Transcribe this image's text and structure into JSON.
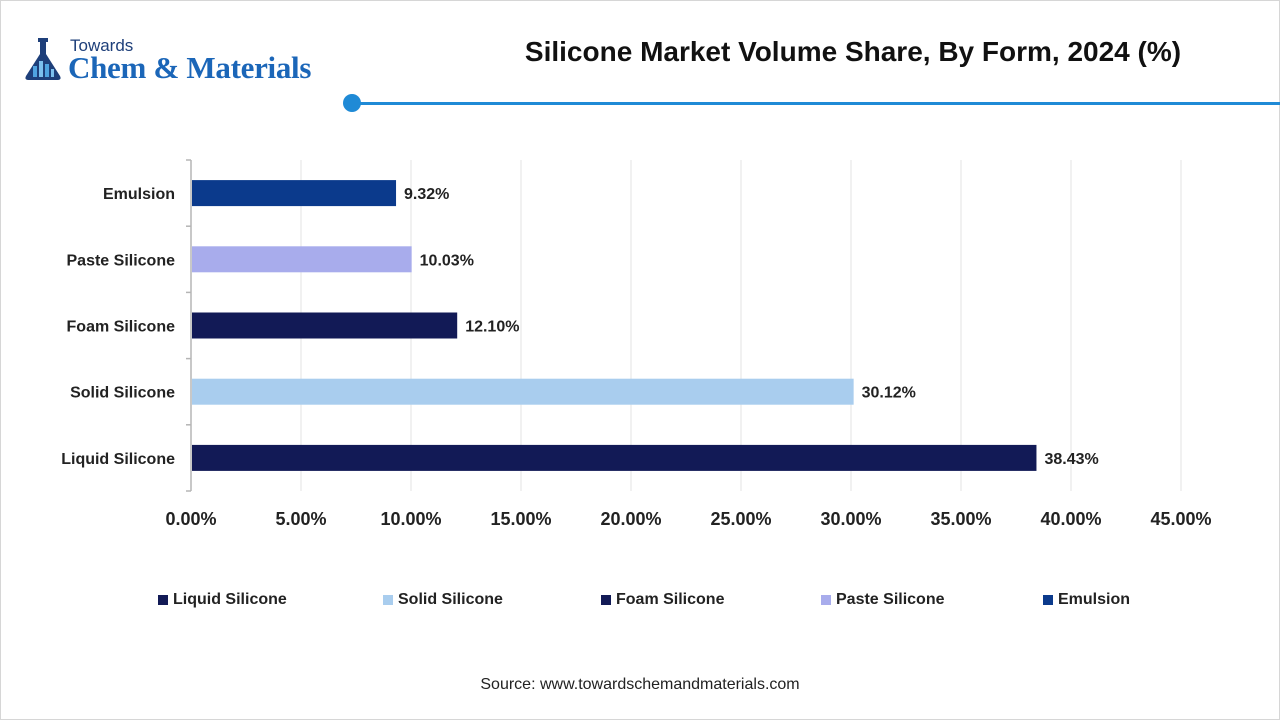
{
  "header": {
    "logo_top": "Towards",
    "logo_main": "Chem & Materials",
    "title": "Silicone Market Volume Share, By Form, 2024 (%)"
  },
  "chart_data": {
    "type": "bar",
    "orientation": "horizontal",
    "title": "Silicone Market Volume Share, By Form, 2024 (%)",
    "categories": [
      "Emulsion",
      "Paste Silicone",
      "Foam Silicone",
      "Solid Silicone",
      "Liquid Silicone"
    ],
    "values": [
      9.32,
      10.03,
      12.1,
      30.12,
      38.43
    ],
    "value_labels": [
      "9.32%",
      "10.03%",
      "12.10%",
      "30.12%",
      "38.43%"
    ],
    "colors": [
      "#0b3a8c",
      "#a8acec",
      "#121a56",
      "#a9cdee",
      "#121a56"
    ],
    "x_ticks": [
      0,
      5,
      10,
      15,
      20,
      25,
      30,
      35,
      40,
      45
    ],
    "x_tick_labels": [
      "0.00%",
      "5.00%",
      "10.00%",
      "15.00%",
      "20.00%",
      "25.00%",
      "30.00%",
      "35.00%",
      "40.00%",
      "45.00%"
    ],
    "xlim": [
      0,
      45
    ],
    "xlabel": "",
    "ylabel": "",
    "grid": true,
    "legend_position": "bottom"
  },
  "legend": {
    "items": [
      {
        "label": "Liquid Silicone",
        "color": "#121a56"
      },
      {
        "label": "Solid Silicone",
        "color": "#a9cdee"
      },
      {
        "label": "Foam Silicone",
        "color": "#121a56"
      },
      {
        "label": "Paste Silicone",
        "color": "#a8acec"
      },
      {
        "label": "Emulsion",
        "color": "#0b3a8c"
      }
    ]
  },
  "footer": {
    "source": "Source: www.towardschemandmaterials.com"
  }
}
